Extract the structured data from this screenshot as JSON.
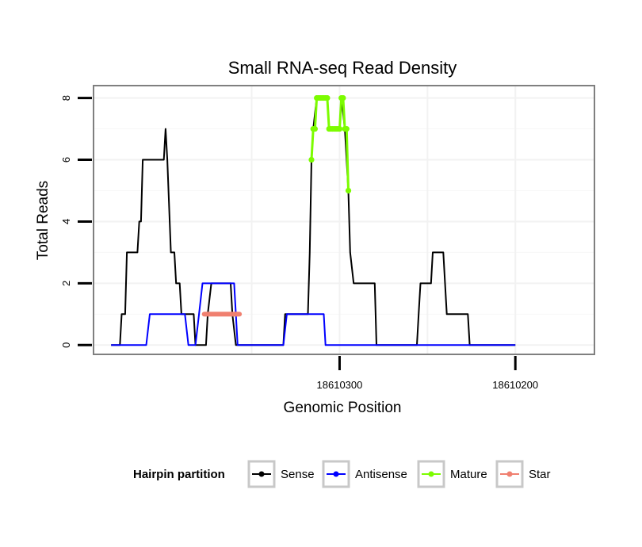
{
  "chart_data": {
    "type": "line",
    "title": "Small RNA-seq Read Density",
    "xlabel": "Genomic Position",
    "ylabel": "Total Reads",
    "x_reversed": true,
    "xlim": [
      18610155,
      18610440
    ],
    "ylim": [
      -0.3,
      8.4
    ],
    "xticks": [
      18610300,
      18610200
    ],
    "xtick_labels": [
      "18610300",
      "18610200"
    ],
    "yticks": [
      0,
      2,
      4,
      6,
      8
    ],
    "ytick_labels": [
      "0",
      "2",
      "4",
      "6",
      "8"
    ],
    "grid": true,
    "legend": {
      "position": "bottom",
      "title": "Hairpin partition",
      "entries": [
        {
          "label": "Sense",
          "color": "#000000"
        },
        {
          "label": "Antisense",
          "color": "#0000ff"
        },
        {
          "label": "Mature",
          "color": "#7cfc00"
        },
        {
          "label": "Star",
          "color": "#f08070"
        }
      ]
    },
    "series": [
      {
        "name": "Sense",
        "color": "#000000",
        "points": [
          [
            18610430,
            0
          ],
          [
            18610425,
            0
          ],
          [
            18610424,
            1
          ],
          [
            18610422,
            1
          ],
          [
            18610421,
            3
          ],
          [
            18610415,
            3
          ],
          [
            18610414,
            4
          ],
          [
            18610413,
            4
          ],
          [
            18610412,
            6
          ],
          [
            18610400,
            6
          ],
          [
            18610399,
            7
          ],
          [
            18610398,
            6
          ],
          [
            18610396,
            3
          ],
          [
            18610394,
            3
          ],
          [
            18610393,
            2
          ],
          [
            18610391,
            2
          ],
          [
            18610390,
            1
          ],
          [
            18610383,
            1
          ],
          [
            18610382,
            0
          ],
          [
            18610376,
            0
          ],
          [
            18610375,
            1
          ],
          [
            18610373,
            2
          ],
          [
            18610362,
            2
          ],
          [
            18610361,
            1
          ],
          [
            18610359,
            0
          ],
          [
            18610332,
            0
          ],
          [
            18610331,
            1
          ],
          [
            18610318,
            1
          ],
          [
            18610317,
            3
          ],
          [
            18610316,
            6
          ],
          [
            18610315,
            7
          ],
          [
            18610313,
            8
          ],
          [
            18610307,
            8
          ],
          [
            18610306,
            7
          ],
          [
            18610300,
            7
          ],
          [
            18610299,
            8
          ],
          [
            18610297,
            7
          ],
          [
            18610295,
            5
          ],
          [
            18610294,
            3
          ],
          [
            18610292,
            2
          ],
          [
            18610280,
            2
          ],
          [
            18610279,
            0
          ],
          [
            18610256,
            0
          ],
          [
            18610255,
            1
          ],
          [
            18610254,
            2
          ],
          [
            18610248,
            2
          ],
          [
            18610247,
            3
          ],
          [
            18610241,
            3
          ],
          [
            18610240,
            2
          ],
          [
            18610239,
            1
          ],
          [
            18610227,
            1
          ],
          [
            18610226,
            0
          ],
          [
            18610200,
            0
          ]
        ]
      },
      {
        "name": "Antisense",
        "color": "#0000ff",
        "points": [
          [
            18610430,
            0
          ],
          [
            18610410,
            0
          ],
          [
            18610408,
            1
          ],
          [
            18610388,
            1
          ],
          [
            18610386,
            0
          ],
          [
            18610382,
            0
          ],
          [
            18610380,
            1
          ],
          [
            18610378,
            2
          ],
          [
            18610360,
            2
          ],
          [
            18610358,
            0
          ],
          [
            18610332,
            0
          ],
          [
            18610330,
            1
          ],
          [
            18610309,
            1
          ],
          [
            18610308,
            0
          ],
          [
            18610200,
            0
          ]
        ]
      },
      {
        "name": "Mature",
        "color": "#7cfc00",
        "points": [
          [
            18610316,
            6
          ],
          [
            18610315,
            7
          ],
          [
            18610314,
            7
          ],
          [
            18610313,
            8
          ],
          [
            18610312,
            8
          ],
          [
            18610311,
            8
          ],
          [
            18610310,
            8
          ],
          [
            18610309,
            8
          ],
          [
            18610308,
            8
          ],
          [
            18610307,
            8
          ],
          [
            18610306,
            7
          ],
          [
            18610305,
            7
          ],
          [
            18610304,
            7
          ],
          [
            18610303,
            7
          ],
          [
            18610302,
            7
          ],
          [
            18610301,
            7
          ],
          [
            18610300,
            7
          ],
          [
            18610299,
            8
          ],
          [
            18610298,
            8
          ],
          [
            18610297,
            7
          ],
          [
            18610296,
            7
          ],
          [
            18610295,
            5
          ]
        ]
      },
      {
        "name": "Star",
        "color": "#f08070",
        "points": [
          [
            18610377,
            1
          ],
          [
            18610375,
            1
          ],
          [
            18610373,
            1
          ],
          [
            18610371,
            1
          ],
          [
            18610369,
            1
          ],
          [
            18610367,
            1
          ],
          [
            18610365,
            1
          ],
          [
            18610363,
            1
          ],
          [
            18610361,
            1
          ],
          [
            18610359,
            1
          ],
          [
            18610357,
            1
          ]
        ]
      }
    ]
  }
}
